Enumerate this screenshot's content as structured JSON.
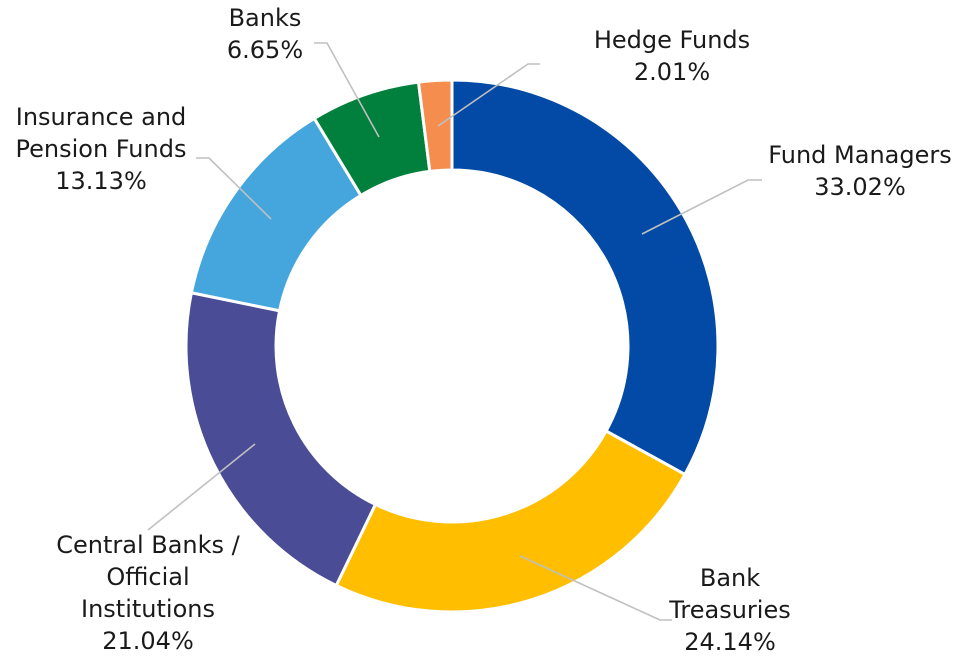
{
  "chart_data": {
    "type": "pie",
    "title": "",
    "donut": true,
    "series": [
      {
        "name": "",
        "values": [
          {
            "label_lines": [
              "Fund Managers"
            ],
            "pct_text": "33.02%",
            "value": 33.02,
            "color": "#024aa5"
          },
          {
            "label_lines": [
              "Bank",
              "Treasuries"
            ],
            "pct_text": "24.14%",
            "value": 24.14,
            "color": "#ffbe00"
          },
          {
            "label_lines": [
              "Central Banks /",
              "Official",
              "Institutions"
            ],
            "pct_text": "21.04%",
            "value": 21.04,
            "color": "#4b4c96"
          },
          {
            "label_lines": [
              "Insurance and",
              "Pension Funds"
            ],
            "pct_text": "13.13%",
            "value": 13.13,
            "color": "#45a5dd"
          },
          {
            "label_lines": [
              "Banks"
            ],
            "pct_text": "6.65%",
            "value": 6.65,
            "color": "#00803c"
          },
          {
            "label_lines": [
              "Hedge Funds"
            ],
            "pct_text": "2.01%",
            "value": 2.01,
            "color": "#f48d4e"
          }
        ]
      }
    ],
    "legend": "none",
    "data_labels": "outside"
  }
}
